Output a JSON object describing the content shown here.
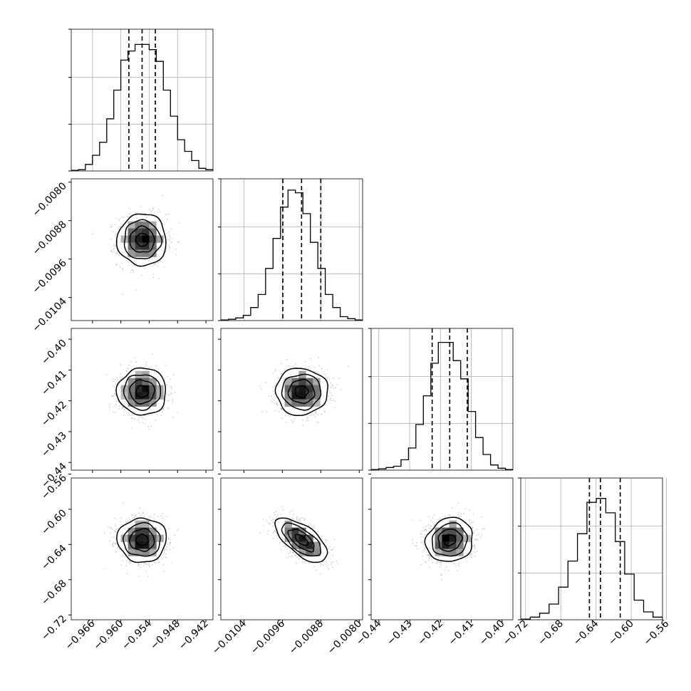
{
  "chart_data": {
    "type": "corner",
    "parameters": [
      {
        "range": [
          -0.9705,
          -0.9405
        ],
        "ticks": [
          "−0.966",
          "−0.960",
          "−0.954",
          "−0.948",
          "−0.942"
        ],
        "tick_values": [
          -0.966,
          -0.96,
          -0.954,
          -0.948,
          -0.942
        ],
        "mean": -0.9555,
        "std": 0.0026,
        "quantiles": [
          -0.9583,
          -0.9555,
          -0.9527
        ],
        "hist": [
          0.5,
          1,
          5,
          12,
          22,
          40,
          62,
          85,
          92,
          97,
          97,
          93,
          84,
          62,
          42,
          24,
          15,
          8,
          2,
          1
        ]
      },
      {
        "range": [
          -0.01088,
          -0.00793
        ],
        "ticks": [
          "−0.0104",
          "−0.0096",
          "−0.0088",
          "−0.0080"
        ],
        "tick_values": [
          -0.0104,
          -0.0096,
          -0.0088,
          -0.008
        ],
        "mean": -0.0092,
        "std": 0.00027,
        "quantiles": [
          -0.00959,
          -0.0092,
          -0.0088
        ],
        "hist": [
          0.5,
          1,
          2,
          4,
          10,
          20,
          40,
          63,
          87,
          100,
          98,
          82,
          60,
          40,
          20,
          10,
          3,
          1.5,
          0.5
        ]
      },
      {
        "range": [
          -0.4425,
          -0.3965
        ],
        "ticks": [
          "−0.44",
          "−0.43",
          "−0.42",
          "−0.41",
          "−0.40"
        ],
        "tick_values": [
          -0.44,
          -0.43,
          -0.42,
          -0.41,
          -0.4
        ],
        "mean": -0.417,
        "std": 0.0038,
        "quantiles": [
          -0.4227,
          -0.417,
          -0.4113
        ],
        "hist": [
          0.5,
          1,
          2,
          3,
          8,
          17,
          35,
          57,
          82,
          98,
          98,
          84,
          70,
          45,
          25,
          12,
          4,
          1.5,
          0.5
        ]
      },
      {
        "range": [
          -0.7255,
          -0.5645
        ],
        "ticks": [
          "−0.72",
          "−0.68",
          "−0.64",
          "−0.60",
          "−0.56"
        ],
        "tick_values": [
          -0.72,
          -0.68,
          -0.64,
          -0.6,
          -0.56
        ],
        "mean": -0.635,
        "std": 0.0125,
        "quantiles": [
          -0.6475,
          -0.635,
          -0.6125
        ],
        "hist": [
          0.5,
          2,
          5,
          12,
          25,
          45,
          66,
          90,
          93,
          82,
          60,
          35,
          15,
          6,
          2
        ]
      }
    ],
    "correlations": [
      [
        0,
        1,
        0.0
      ],
      [
        0,
        2,
        0.0
      ],
      [
        0,
        3,
        0.0
      ],
      [
        1,
        2,
        0.0
      ],
      [
        1,
        3,
        -0.65
      ],
      [
        2,
        3,
        0.1
      ]
    ],
    "contour_levels_sigma": [
      0.5,
      1.0,
      1.5,
      2.0
    ],
    "colors": {
      "line": "#000000",
      "hist_fill": "#000000",
      "scatter": "#b0b0b0",
      "grid": "#b0b0b0"
    },
    "grid": true,
    "legend": "none"
  }
}
